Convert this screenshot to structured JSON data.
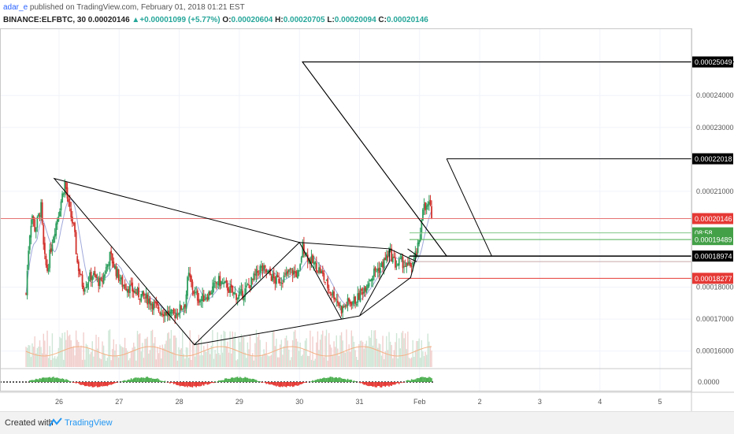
{
  "header": {
    "user": "adar_e",
    "published_text": "published on TradingView.com, February 01, 2018 01:21 EST",
    "symbol": "BINANCE:ELFBTC, 30",
    "last": "0.00020146",
    "change": "+0.00001099 (+5.77%)",
    "open_label": "O:",
    "open": "0.00020604",
    "high_label": "H:",
    "high": "0.00020705",
    "low_label": "L:",
    "low": "0.00020094",
    "close_label": "C:",
    "close": "0.00020146"
  },
  "footer": {
    "created_with": "Created with",
    "brand": "TradingView"
  },
  "colors": {
    "up": "#26a69a",
    "candle_up": "#2e9e5e",
    "candle_down": "#d2322d",
    "price_line": "#e57373",
    "green_line": "#4caf50",
    "label_black": "#000000",
    "label_red": "#e53935",
    "label_green": "#43a047"
  },
  "chart_data": {
    "type": "candlestick",
    "symbol": "ELFBTC",
    "timeframe": "30",
    "x_tick_labels": [
      "26",
      "27",
      "28",
      "29",
      "30",
      "31",
      "Feb",
      "2",
      "3",
      "4",
      "5"
    ],
    "y_tick_labels": [
      "0.00024000",
      "0.00023000",
      "0.00021000",
      "0.00018000",
      "0.00017000",
      "0.00016000"
    ],
    "ylim": [
      0.000155,
      0.000261
    ],
    "indicator_axis_label": "0.0000",
    "price_labels": [
      {
        "text": "0.00025049",
        "value": 0.00025049,
        "style": "black"
      },
      {
        "text": "0.00022018",
        "value": 0.00022018,
        "style": "black"
      },
      {
        "text": "0.00020146",
        "value": 0.00020146,
        "style": "red"
      },
      {
        "text": "08:58",
        "value": 0.000197,
        "style": "green"
      },
      {
        "text": "0.00019489",
        "value": 0.00019489,
        "style": "green"
      },
      {
        "text": "0.00018974",
        "value": 0.00018974,
        "style": "black"
      },
      {
        "text": "0.00018277",
        "value": 0.00018277,
        "style": "red"
      }
    ],
    "close_path": [
      [
        25.45,
        0.000178
      ],
      [
        25.5,
        0.000195
      ],
      [
        25.55,
        0.000203
      ],
      [
        25.6,
        0.000198
      ],
      [
        25.7,
        0.000205
      ],
      [
        25.75,
        0.00019
      ],
      [
        25.8,
        0.000185
      ],
      [
        25.9,
        0.000196
      ],
      [
        26.0,
        0.000204
      ],
      [
        26.1,
        0.000213
      ],
      [
        26.15,
        0.000206
      ],
      [
        26.25,
        0.000198
      ],
      [
        26.3,
        0.000188
      ],
      [
        26.4,
        0.00018
      ],
      [
        26.55,
        0.000184
      ],
      [
        26.7,
        0.000181
      ],
      [
        26.85,
        0.00019
      ],
      [
        26.95,
        0.000185
      ],
      [
        27.05,
        0.000181
      ],
      [
        27.15,
        0.00018
      ],
      [
        27.3,
        0.000178
      ],
      [
        27.5,
        0.000176
      ],
      [
        27.65,
        0.000173
      ],
      [
        27.8,
        0.000172
      ],
      [
        27.9,
        0.000171
      ],
      [
        28.1,
        0.000175
      ],
      [
        28.15,
        0.000184
      ],
      [
        28.25,
        0.000178
      ],
      [
        28.35,
        0.000176
      ],
      [
        28.5,
        0.000178
      ],
      [
        28.65,
        0.000182
      ],
      [
        28.8,
        0.00018
      ],
      [
        28.9,
        0.000178
      ],
      [
        29.0,
        0.000177
      ],
      [
        29.1,
        0.000179
      ],
      [
        29.25,
        0.000183
      ],
      [
        29.35,
        0.000186
      ],
      [
        29.5,
        0.000184
      ],
      [
        29.6,
        0.000182
      ],
      [
        29.75,
        0.000183
      ],
      [
        29.85,
        0.000185
      ],
      [
        30.0,
        0.000184
      ],
      [
        30.05,
        0.000193
      ],
      [
        30.15,
        0.000189
      ],
      [
        30.25,
        0.000187
      ],
      [
        30.35,
        0.000185
      ],
      [
        30.5,
        0.000179
      ],
      [
        30.6,
        0.000177
      ],
      [
        30.7,
        0.000173
      ],
      [
        30.8,
        0.000175
      ],
      [
        30.95,
        0.000176
      ],
      [
        31.05,
        0.000179
      ],
      [
        31.15,
        0.000182
      ],
      [
        31.25,
        0.000185
      ],
      [
        31.35,
        0.000186
      ],
      [
        31.5,
        0.000191
      ],
      [
        31.6,
        0.000187
      ],
      [
        31.7,
        0.000188
      ],
      [
        31.8,
        0.000186
      ],
      [
        31.9,
        0.000188
      ],
      [
        32.0,
        0.000194
      ],
      [
        32.05,
        0.000206
      ],
      [
        32.1,
        0.000204
      ],
      [
        32.15,
        0.000206
      ],
      [
        32.2,
        0.000203
      ],
      [
        32.22,
        0.000201
      ]
    ],
    "drawings": [
      "parallel channel from 26 to Feb 1",
      "long downtrend wedge with projection to 0.00025049",
      "upper target line 0.00022018",
      "horizontal support 0.00018974"
    ]
  }
}
